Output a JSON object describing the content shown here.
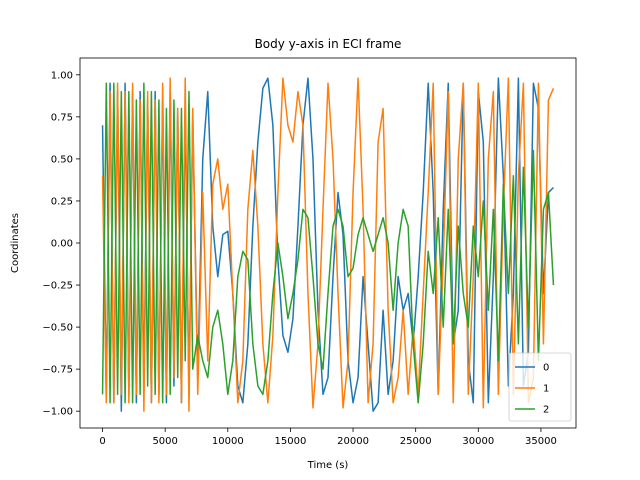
{
  "chart_data": {
    "type": "line",
    "title": "Body y-axis in ECI frame",
    "xlabel": "Time (s)",
    "ylabel": "Coordinates",
    "xlim": [
      -1800,
      37800
    ],
    "ylim": [
      -1.1,
      1.1
    ],
    "xticks": [
      0,
      5000,
      10000,
      15000,
      20000,
      25000,
      30000,
      35000
    ],
    "yticks": [
      -1.0,
      -0.75,
      -0.5,
      -0.25,
      0.0,
      0.25,
      0.5,
      0.75,
      1.0
    ],
    "xtick_labels": [
      "0",
      "5000",
      "10000",
      "15000",
      "20000",
      "25000",
      "30000",
      "35000"
    ],
    "ytick_labels": [
      "−1.00",
      "−0.75",
      "−0.50",
      "−0.25",
      "0.00",
      "0.25",
      "0.50",
      "0.75",
      "1.00"
    ],
    "grid": false,
    "legend_position": "bottom-right",
    "series": [
      {
        "name": "0",
        "color": "#1f77b4",
        "x": [
          0,
          300,
          600,
          900,
          1200,
          1500,
          1800,
          2100,
          2400,
          2700,
          3000,
          3300,
          3600,
          3900,
          4200,
          4500,
          4800,
          5100,
          5400,
          5700,
          6000,
          6300,
          6600,
          6900,
          7200,
          7600,
          8000,
          8400,
          8800,
          9200,
          9600,
          10000,
          10400,
          10800,
          11200,
          11600,
          12000,
          12400,
          12800,
          13200,
          13600,
          14000,
          14400,
          14800,
          15200,
          15600,
          16000,
          16400,
          16800,
          17200,
          17600,
          18000,
          18400,
          18800,
          19200,
          19600,
          20000,
          20400,
          20800,
          21200,
          21600,
          22000,
          22400,
          22800,
          23200,
          23600,
          24000,
          24400,
          24800,
          25200,
          25600,
          26000,
          26400,
          26800,
          27200,
          27600,
          28000,
          28400,
          28800,
          29200,
          29600,
          30000,
          30400,
          30800,
          31200,
          31600,
          32000,
          32400,
          32800,
          33200,
          33600,
          34000,
          34400,
          34800,
          35200,
          35600,
          36000
        ],
        "y": [
          0.7,
          -0.9,
          0.95,
          -0.95,
          0.9,
          -1.0,
          0.95,
          -0.9,
          0.9,
          -0.95,
          0.9,
          -0.85,
          0.85,
          -0.95,
          0.9,
          -0.9,
          0.85,
          -0.95,
          0.9,
          -0.85,
          0.8,
          -0.95,
          0.8,
          -0.9,
          0.75,
          -0.8,
          0.5,
          0.9,
          0.1,
          -0.2,
          0.05,
          0.07,
          -0.3,
          -0.85,
          -0.95,
          -0.6,
          0.1,
          0.6,
          0.92,
          0.98,
          0.7,
          -0.1,
          -0.55,
          -0.65,
          -0.45,
          0.1,
          0.7,
          0.98,
          0.5,
          -0.4,
          -0.9,
          -0.8,
          -0.2,
          0.3,
          0.05,
          -0.7,
          -0.95,
          -0.8,
          -0.2,
          -0.6,
          -1.0,
          -0.95,
          -0.4,
          -0.9,
          -0.7,
          -0.2,
          -0.4,
          -0.3,
          -0.6,
          -0.2,
          0.3,
          0.95,
          0.3,
          -0.9,
          0.2,
          0.95,
          -0.6,
          -0.4,
          0.95,
          -0.7,
          -0.95,
          0.9,
          0.6,
          -0.95,
          -0.2,
          0.98,
          0.4,
          -0.85,
          -0.3,
          0.98,
          -0.85,
          -0.65,
          0.95,
          0.8,
          -0.3,
          0.3,
          0.33
        ]
      },
      {
        "name": "1",
        "color": "#ff7f0e",
        "x": [
          0,
          300,
          600,
          900,
          1200,
          1500,
          1800,
          2100,
          2400,
          2700,
          3000,
          3300,
          3600,
          3900,
          4200,
          4500,
          4800,
          5100,
          5400,
          5700,
          6000,
          6300,
          6600,
          6900,
          7200,
          7600,
          8000,
          8400,
          8800,
          9200,
          9600,
          10000,
          10400,
          10800,
          11200,
          11600,
          12000,
          12400,
          12800,
          13200,
          13600,
          14000,
          14400,
          14800,
          15200,
          15600,
          16000,
          16400,
          16800,
          17200,
          17600,
          18000,
          18400,
          18800,
          19200,
          19600,
          20000,
          20400,
          20800,
          21200,
          21600,
          22000,
          22400,
          22800,
          23200,
          23600,
          24000,
          24400,
          24800,
          25200,
          25600,
          26000,
          26400,
          26800,
          27200,
          27600,
          28000,
          28400,
          28800,
          29200,
          29600,
          30000,
          30400,
          30800,
          31200,
          31600,
          32000,
          32400,
          32800,
          33200,
          33600,
          34000,
          34400,
          34800,
          35200,
          35600,
          36000
        ],
        "y": [
          0.4,
          -0.95,
          0.9,
          -0.95,
          0.95,
          -0.9,
          0.9,
          -0.95,
          0.95,
          -0.9,
          0.85,
          -1.0,
          0.9,
          -0.95,
          0.85,
          -0.95,
          0.95,
          -0.9,
          0.98,
          -0.8,
          0.8,
          -0.95,
          0.98,
          -1.0,
          0.8,
          -0.9,
          0.3,
          -0.7,
          0.35,
          0.5,
          0.2,
          0.35,
          -0.3,
          -0.95,
          -0.7,
          0.2,
          0.55,
          0.1,
          -0.6,
          -0.95,
          -0.55,
          0.3,
          0.98,
          0.7,
          0.6,
          0.9,
          0.7,
          -0.3,
          -0.98,
          -0.6,
          0.2,
          0.95,
          0.5,
          -0.3,
          -0.98,
          -0.7,
          0.3,
          0.98,
          0.2,
          -0.95,
          -0.6,
          0.6,
          0.8,
          -0.4,
          -0.95,
          -0.8,
          -0.4,
          -0.9,
          -0.5,
          -0.9,
          -0.3,
          0.3,
          0.95,
          -0.9,
          -0.1,
          0.9,
          -0.95,
          0.5,
          0.95,
          -0.9,
          -0.2,
          0.95,
          -0.98,
          0.5,
          0.9,
          -0.9,
          0.2,
          0.98,
          -0.9,
          0.4,
          0.95,
          -0.95,
          -0.8,
          0.95,
          -0.6,
          0.85,
          0.92
        ]
      },
      {
        "name": "2",
        "color": "#2ca02c",
        "x": [
          0,
          300,
          600,
          900,
          1200,
          1500,
          1800,
          2100,
          2400,
          2700,
          3000,
          3300,
          3600,
          3900,
          4200,
          4500,
          4800,
          5100,
          5400,
          5700,
          6000,
          6300,
          6600,
          6900,
          7200,
          7600,
          8000,
          8400,
          8800,
          9200,
          9600,
          10000,
          10400,
          10800,
          11200,
          11600,
          12000,
          12400,
          12800,
          13200,
          13600,
          14000,
          14400,
          14800,
          15200,
          15600,
          16000,
          16400,
          16800,
          17200,
          17600,
          18000,
          18400,
          18800,
          19200,
          19600,
          20000,
          20400,
          20800,
          21200,
          21600,
          22000,
          22400,
          22800,
          23200,
          23600,
          24000,
          24400,
          24800,
          25200,
          25600,
          26000,
          26400,
          26800,
          27200,
          27600,
          28000,
          28400,
          28800,
          29200,
          29600,
          30000,
          30400,
          30800,
          31200,
          31600,
          32000,
          32400,
          32800,
          33200,
          33600,
          34000,
          34400,
          34800,
          35200,
          35600,
          36000
        ],
        "y": [
          -0.9,
          0.95,
          -0.95,
          0.95,
          -0.9,
          0.9,
          -0.95,
          0.9,
          -0.95,
          0.85,
          -0.9,
          0.95,
          -0.85,
          0.9,
          -0.9,
          0.85,
          -0.95,
          0.8,
          -0.9,
          0.85,
          -0.8,
          0.8,
          -0.7,
          0.9,
          -0.75,
          -0.55,
          -0.7,
          -0.8,
          -0.5,
          -0.4,
          -0.6,
          -0.9,
          -0.7,
          -0.2,
          -0.05,
          -0.1,
          -0.6,
          -0.85,
          -0.9,
          -0.7,
          -0.3,
          0.0,
          -0.2,
          -0.45,
          -0.3,
          -0.1,
          0.2,
          0.15,
          -0.2,
          -0.6,
          -0.75,
          -0.3,
          0.1,
          0.2,
          0.1,
          -0.2,
          -0.15,
          0.05,
          0.15,
          0.05,
          -0.05,
          0.05,
          0.15,
          0.0,
          -0.4,
          0.0,
          0.2,
          0.1,
          -0.6,
          -0.95,
          -0.6,
          -0.05,
          -0.3,
          0.15,
          -0.5,
          0.2,
          -0.6,
          0.1,
          -0.3,
          -0.5,
          0.1,
          -0.2,
          0.25,
          -0.4,
          0.2,
          -0.7,
          0.35,
          -0.3,
          0.4,
          -0.6,
          0.45,
          -0.5,
          0.55,
          -0.7,
          0.2,
          0.3,
          -0.25
        ]
      }
    ]
  }
}
